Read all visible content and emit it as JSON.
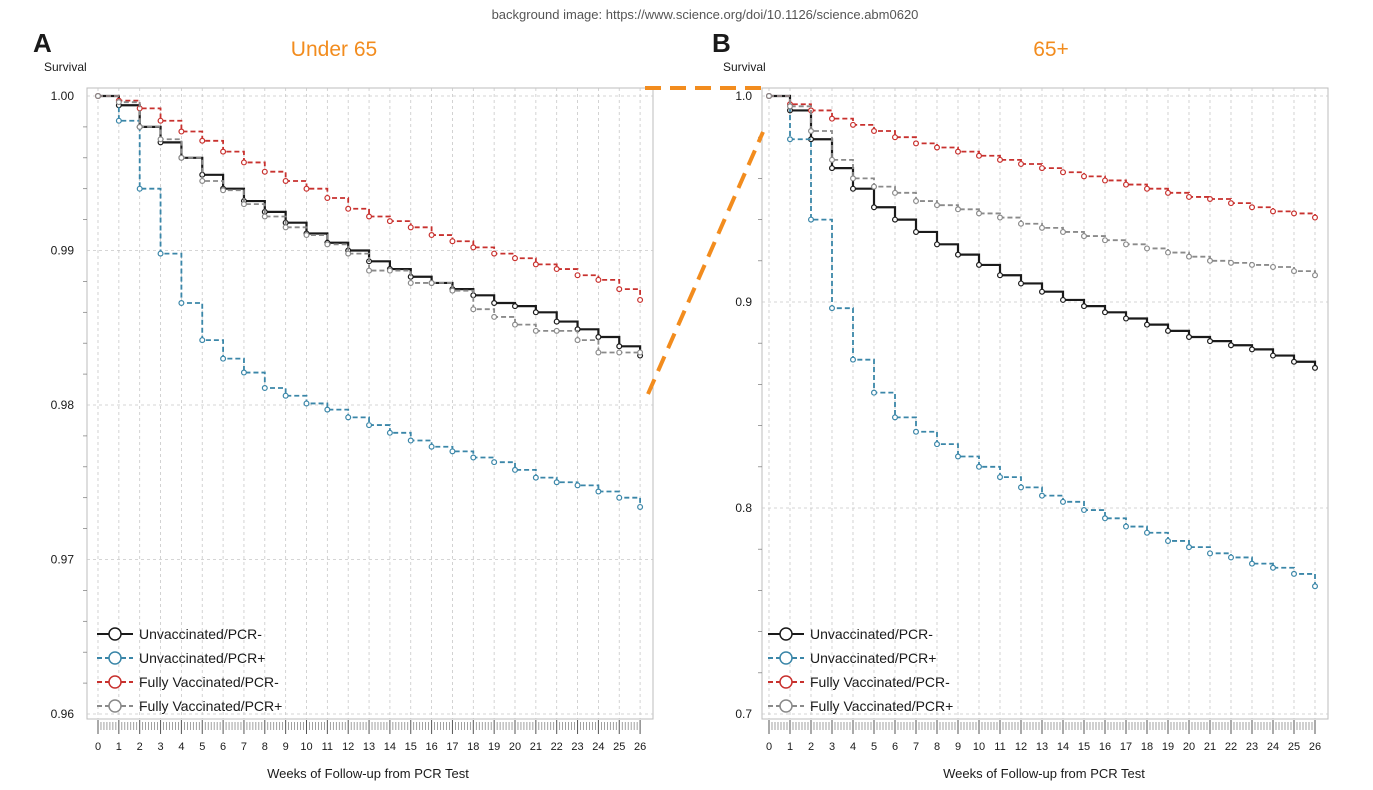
{
  "header_note": "background image: https://www.science.org/doi/10.1126/science.abm0620",
  "colors": {
    "unvax_neg": "#1a1a1a",
    "unvax_pos": "#3a86a8",
    "vax_neg": "#c8312e",
    "vax_pos": "#8a8a8a",
    "accent": "#f28c1e",
    "grid": "#c8c8c8"
  },
  "legend": [
    {
      "label": "Unvaccinated/PCR-",
      "key": "unvax_neg",
      "dash": false
    },
    {
      "label": "Unvaccinated/PCR+",
      "key": "unvax_pos",
      "dash": true
    },
    {
      "label": "Fully Vaccinated/PCR-",
      "key": "vax_neg",
      "dash": true
    },
    {
      "label": "Fully Vaccinated/PCR+",
      "key": "vax_pos",
      "dash": true
    }
  ],
  "chart_data": [
    {
      "type": "line",
      "panel_label": "A",
      "title": "Under 65",
      "ylabel": "Survival",
      "xlabel": "Weeks of Follow-up from PCR Test",
      "x": [
        0,
        1,
        2,
        3,
        4,
        5,
        6,
        7,
        8,
        9,
        10,
        11,
        12,
        13,
        14,
        15,
        16,
        17,
        18,
        19,
        20,
        21,
        22,
        23,
        24,
        25,
        26
      ],
      "ylim": [
        0.96,
        1.0
      ],
      "yticks": [
        0.96,
        0.97,
        0.98,
        0.99,
        1.0
      ],
      "ytick_labels": [
        "0.96",
        "0.97",
        "0.98",
        "0.99",
        "1.00"
      ],
      "legend_position": "bottom-left",
      "series": [
        {
          "name": "Unvaccinated/PCR-",
          "key": "unvax_neg",
          "values": [
            1.0,
            0.9994,
            0.998,
            0.997,
            0.996,
            0.9949,
            0.994,
            0.9932,
            0.9925,
            0.9918,
            0.9911,
            0.9905,
            0.99,
            0.9893,
            0.9888,
            0.9883,
            0.9879,
            0.9875,
            0.9871,
            0.9866,
            0.9864,
            0.986,
            0.9854,
            0.9849,
            0.9844,
            0.9838,
            0.9832
          ]
        },
        {
          "name": "Unvaccinated/PCR+",
          "key": "unvax_pos",
          "values": [
            1.0,
            0.9984,
            0.994,
            0.9898,
            0.9866,
            0.9842,
            0.983,
            0.9821,
            0.9811,
            0.9806,
            0.9801,
            0.9797,
            0.9792,
            0.9787,
            0.9782,
            0.9777,
            0.9773,
            0.977,
            0.9766,
            0.9763,
            0.9758,
            0.9753,
            0.975,
            0.9748,
            0.9744,
            0.974,
            0.9734
          ]
        },
        {
          "name": "Fully Vaccinated/PCR-",
          "key": "vax_neg",
          "values": [
            1.0,
            0.9997,
            0.9992,
            0.9984,
            0.9977,
            0.9971,
            0.9964,
            0.9957,
            0.9951,
            0.9945,
            0.994,
            0.9934,
            0.9927,
            0.9922,
            0.9919,
            0.9915,
            0.991,
            0.9906,
            0.9902,
            0.9898,
            0.9895,
            0.9891,
            0.9888,
            0.9884,
            0.9881,
            0.9875,
            0.9868
          ]
        },
        {
          "name": "Fully Vaccinated/PCR+",
          "key": "vax_pos",
          "values": [
            1.0,
            0.9996,
            0.998,
            0.9972,
            0.996,
            0.9945,
            0.9939,
            0.993,
            0.9922,
            0.9915,
            0.991,
            0.9904,
            0.9898,
            0.9887,
            0.9887,
            0.9879,
            0.9879,
            0.9874,
            0.9862,
            0.9857,
            0.9852,
            0.9848,
            0.9848,
            0.9842,
            0.9834,
            0.9834,
            0.9834
          ]
        }
      ]
    },
    {
      "type": "line",
      "panel_label": "B",
      "title": "65+",
      "ylabel": "Survival",
      "xlabel": "Weeks of Follow-up from PCR Test",
      "x": [
        0,
        1,
        2,
        3,
        4,
        5,
        6,
        7,
        8,
        9,
        10,
        11,
        12,
        13,
        14,
        15,
        16,
        17,
        18,
        19,
        20,
        21,
        22,
        23,
        24,
        25,
        26
      ],
      "ylim": [
        0.7,
        1.0
      ],
      "yticks": [
        0.7,
        0.8,
        0.9,
        1.0
      ],
      "ytick_labels": [
        "0.7",
        "0.8",
        "0.9",
        "1.0"
      ],
      "legend_position": "bottom-left",
      "series": [
        {
          "name": "Unvaccinated/PCR-",
          "key": "unvax_neg",
          "values": [
            1.0,
            0.993,
            0.979,
            0.965,
            0.955,
            0.946,
            0.94,
            0.934,
            0.928,
            0.923,
            0.918,
            0.913,
            0.909,
            0.905,
            0.901,
            0.898,
            0.895,
            0.892,
            0.889,
            0.886,
            0.883,
            0.881,
            0.879,
            0.877,
            0.874,
            0.871,
            0.868
          ]
        },
        {
          "name": "Unvaccinated/PCR+",
          "key": "unvax_pos",
          "values": [
            1.0,
            0.979,
            0.94,
            0.897,
            0.872,
            0.856,
            0.844,
            0.837,
            0.831,
            0.825,
            0.82,
            0.815,
            0.81,
            0.806,
            0.803,
            0.799,
            0.795,
            0.791,
            0.788,
            0.784,
            0.781,
            0.778,
            0.776,
            0.773,
            0.771,
            0.768,
            0.762
          ]
        },
        {
          "name": "Fully Vaccinated/PCR-",
          "key": "vax_neg",
          "values": [
            1.0,
            0.996,
            0.993,
            0.989,
            0.986,
            0.983,
            0.98,
            0.977,
            0.975,
            0.973,
            0.971,
            0.969,
            0.967,
            0.965,
            0.963,
            0.961,
            0.959,
            0.957,
            0.955,
            0.953,
            0.951,
            0.95,
            0.948,
            0.946,
            0.944,
            0.943,
            0.941
          ]
        },
        {
          "name": "Fully Vaccinated/PCR+",
          "key": "vax_pos",
          "values": [
            1.0,
            0.995,
            0.983,
            0.969,
            0.96,
            0.956,
            0.953,
            0.949,
            0.947,
            0.945,
            0.943,
            0.941,
            0.938,
            0.936,
            0.934,
            0.932,
            0.93,
            0.928,
            0.926,
            0.924,
            0.922,
            0.92,
            0.919,
            0.918,
            0.917,
            0.915,
            0.913
          ]
        }
      ]
    }
  ]
}
